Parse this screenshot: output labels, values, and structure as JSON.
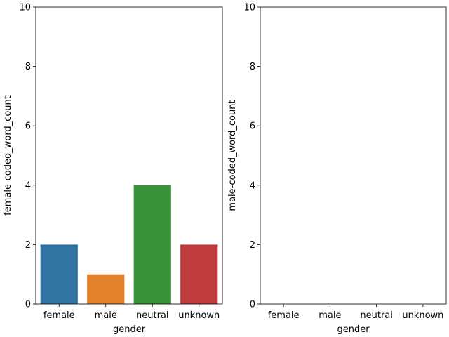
{
  "chart_data": [
    {
      "type": "bar",
      "categories": [
        "female",
        "male",
        "neutral",
        "unknown"
      ],
      "values": [
        2,
        1,
        4,
        2
      ],
      "colors": [
        "#3274a1",
        "#e1812c",
        "#3a923a",
        "#c03d3e"
      ],
      "xlabel": "gender",
      "ylabel": "female-coded_word_count",
      "ylim": [
        0,
        10
      ],
      "yticks": [
        0,
        2,
        4,
        6,
        8,
        10
      ],
      "grid": false
    },
    {
      "type": "bar",
      "categories": [
        "female",
        "male",
        "neutral",
        "unknown"
      ],
      "values": [
        0,
        0,
        0,
        0
      ],
      "colors": [
        "#3274a1",
        "#e1812c",
        "#3a923a",
        "#c03d3e"
      ],
      "xlabel": "gender",
      "ylabel": "male-coded_word_count",
      "ylim": [
        0,
        10
      ],
      "yticks": [
        0,
        2,
        4,
        6,
        8,
        10
      ],
      "grid": false
    }
  ]
}
